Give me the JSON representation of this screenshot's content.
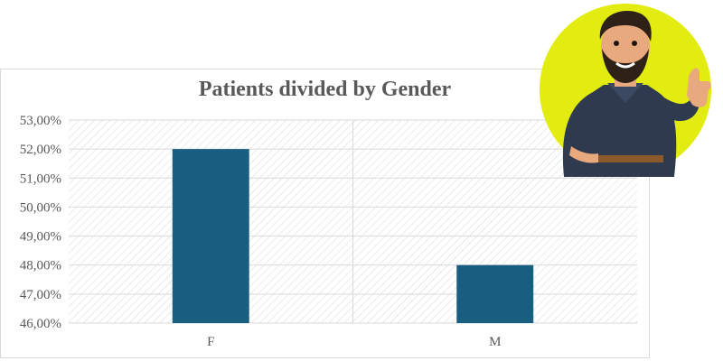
{
  "chart_data": {
    "type": "bar",
    "title": "Patients divided by Gender",
    "categories": [
      "F",
      "M"
    ],
    "values": [
      52.0,
      48.0
    ],
    "ylim": [
      46,
      53
    ],
    "yticks": [
      "46,00%",
      "47,00%",
      "48,00%",
      "49,00%",
      "50,00%",
      "51,00%",
      "52,00%",
      "53,00%"
    ],
    "xlabel": "",
    "ylabel": "",
    "grid": true,
    "bar_color": "#175e80",
    "plot_hatch": true
  },
  "mascot": {
    "icon": "thumbs-up-man-icon",
    "circle_color": "#e3ec10",
    "shirt_color": "#2f3a4e",
    "skin_color": "#e8a97e",
    "hair_color": "#2e2218"
  }
}
